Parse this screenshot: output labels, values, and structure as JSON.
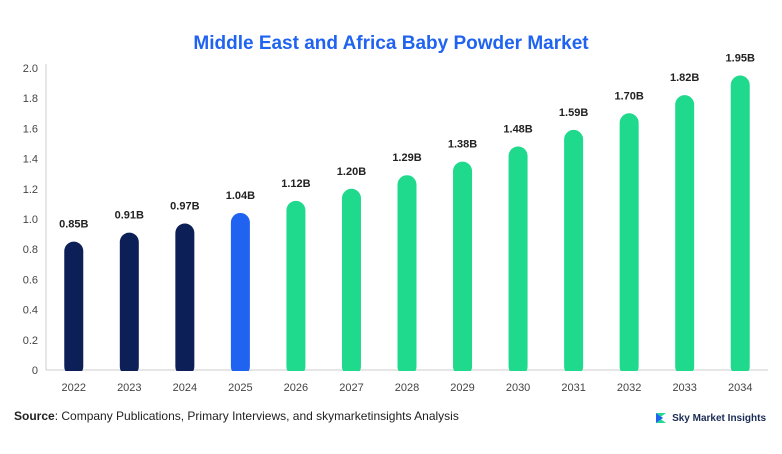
{
  "chart_data": {
    "type": "bar",
    "title": "Middle East and Africa Baby Powder Market",
    "categories": [
      "2022",
      "2023",
      "2024",
      "2025",
      "2026",
      "2027",
      "2028",
      "2029",
      "2030",
      "2031",
      "2032",
      "2033",
      "2034"
    ],
    "values": [
      0.85,
      0.91,
      0.97,
      1.04,
      1.12,
      1.2,
      1.29,
      1.38,
      1.48,
      1.59,
      1.7,
      1.82,
      1.95
    ],
    "data_labels": [
      "0.85B",
      "0.91B",
      "0.97B",
      "1.04B",
      "1.12B",
      "1.20B",
      "1.29B",
      "1.38B",
      "1.48B",
      "1.59B",
      "1.70B",
      "1.82B",
      "1.95B"
    ],
    "bar_colors": [
      "#0c1f56",
      "#0c1f56",
      "#0c1f56",
      "#2063f0",
      "#1fd98c",
      "#1fd98c",
      "#1fd98c",
      "#1fd98c",
      "#1fd98c",
      "#1fd98c",
      "#1fd98c",
      "#1fd98c",
      "#1fd98c"
    ],
    "yticks": [
      "0",
      "0.2",
      "0.4",
      "0.6",
      "0.8",
      "1.0",
      "1.2",
      "1.4",
      "1.6",
      "1.8",
      "2.0"
    ],
    "ylim": [
      0,
      2.0
    ],
    "xlabel": "",
    "ylabel": "",
    "grid": false
  },
  "colors": {
    "title": "#2063f0",
    "axis": "#cccccc",
    "tick_text": "#444444",
    "label_text": "#222222"
  },
  "footer": {
    "source_label": "Source",
    "source_text": ": Company Publications, Primary Interviews, and skymarketinsights Analysis"
  },
  "brand": {
    "name": "Sky Market Insights",
    "icon": "sky-market-insights-logo-icon"
  }
}
